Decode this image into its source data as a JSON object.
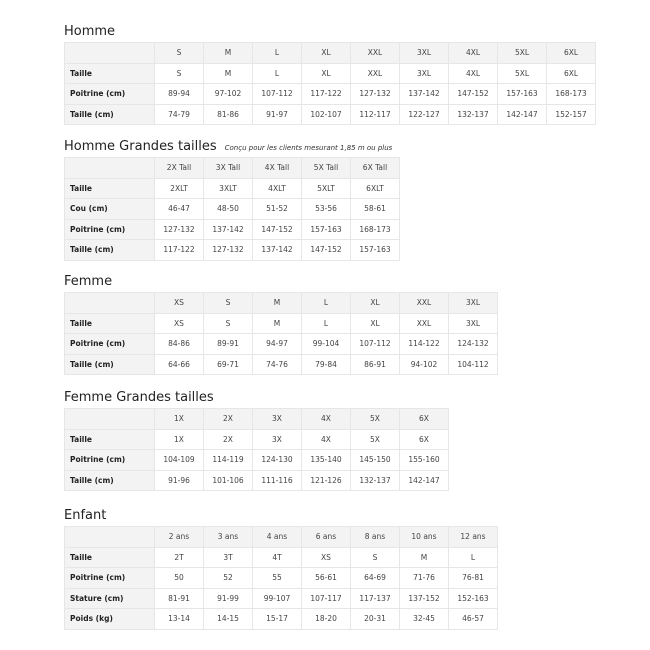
{
  "sections": [
    {
      "title": "Homme",
      "note": "",
      "columns": [
        "S",
        "M",
        "L",
        "XL",
        "XXL",
        "3XL",
        "4XL",
        "5XL",
        "6XL"
      ],
      "rows": [
        {
          "label": "Taille",
          "values": [
            "S",
            "M",
            "L",
            "XL",
            "XXL",
            "3XL",
            "4XL",
            "5XL",
            "6XL"
          ]
        },
        {
          "label": "Poitrine (cm)",
          "values": [
            "89-94",
            "97-102",
            "107-112",
            "117-122",
            "127-132",
            "137-142",
            "147-152",
            "157-163",
            "168-173"
          ]
        },
        {
          "label": "Taille (cm)",
          "values": [
            "74-79",
            "81-86",
            "91-97",
            "102-107",
            "112-117",
            "122-127",
            "132-137",
            "142-147",
            "152-157"
          ]
        }
      ]
    },
    {
      "title": "Homme Grandes tailles",
      "note": "Conçu pour les clients mesurant 1,85 m ou plus",
      "columns": [
        "2X Tall",
        "3X Tall",
        "4X Tall",
        "5X Tall",
        "6X Tall"
      ],
      "rows": [
        {
          "label": "Taille",
          "values": [
            "2XLT",
            "3XLT",
            "4XLT",
            "5XLT",
            "6XLT"
          ]
        },
        {
          "label": "Cou (cm)",
          "values": [
            "46-47",
            "48-50",
            "51-52",
            "53-56",
            "58-61"
          ]
        },
        {
          "label": "Poitrine (cm)",
          "values": [
            "127-132",
            "137-142",
            "147-152",
            "157-163",
            "168-173"
          ]
        },
        {
          "label": "Taille (cm)",
          "values": [
            "117-122",
            "127-132",
            "137-142",
            "147-152",
            "157-163"
          ]
        }
      ]
    },
    {
      "title": "Femme",
      "note": "",
      "columns": [
        "XS",
        "S",
        "M",
        "L",
        "XL",
        "XXL",
        "3XL"
      ],
      "rows": [
        {
          "label": "Taille",
          "values": [
            "XS",
            "S",
            "M",
            "L",
            "XL",
            "XXL",
            "3XL"
          ]
        },
        {
          "label": "Poitrine (cm)",
          "values": [
            "84-86",
            "89-91",
            "94-97",
            "99-104",
            "107-112",
            "114-122",
            "124-132"
          ]
        },
        {
          "label": "Taille (cm)",
          "values": [
            "64-66",
            "69-71",
            "74-76",
            "79-84",
            "86-91",
            "94-102",
            "104-112"
          ]
        }
      ]
    },
    {
      "title": "Femme Grandes tailles",
      "note": "",
      "columns": [
        "1X",
        "2X",
        "3X",
        "4X",
        "5X",
        "6X"
      ],
      "rows": [
        {
          "label": "Taille",
          "values": [
            "1X",
            "2X",
            "3X",
            "4X",
            "5X",
            "6X"
          ]
        },
        {
          "label": "Poitrine (cm)",
          "values": [
            "104-109",
            "114-119",
            "124-130",
            "135-140",
            "145-150",
            "155-160"
          ]
        },
        {
          "label": "Taille (cm)",
          "values": [
            "91-96",
            "101-106",
            "111-116",
            "121-126",
            "132-137",
            "142-147"
          ]
        }
      ]
    },
    {
      "title": "Enfant",
      "note": "",
      "columns": [
        "2 ans",
        "3 ans",
        "4 ans",
        "6 ans",
        "8 ans",
        "10 ans",
        "12 ans"
      ],
      "rows": [
        {
          "label": "Taille",
          "values": [
            "2T",
            "3T",
            "4T",
            "XS",
            "S",
            "M",
            "L"
          ]
        },
        {
          "label": "Poitrine (cm)",
          "values": [
            "50",
            "52",
            "55",
            "56-61",
            "64-69",
            "71-76",
            "76-81"
          ]
        },
        {
          "label": "Stature (cm)",
          "values": [
            "81-91",
            "91-99",
            "99-107",
            "107-117",
            "117-137",
            "137-152",
            "152-163"
          ]
        },
        {
          "label": "Poids (kg)",
          "values": [
            "13-14",
            "14-15",
            "15-17",
            "18-20",
            "20-31",
            "32-45",
            "46-57"
          ]
        }
      ]
    }
  ]
}
